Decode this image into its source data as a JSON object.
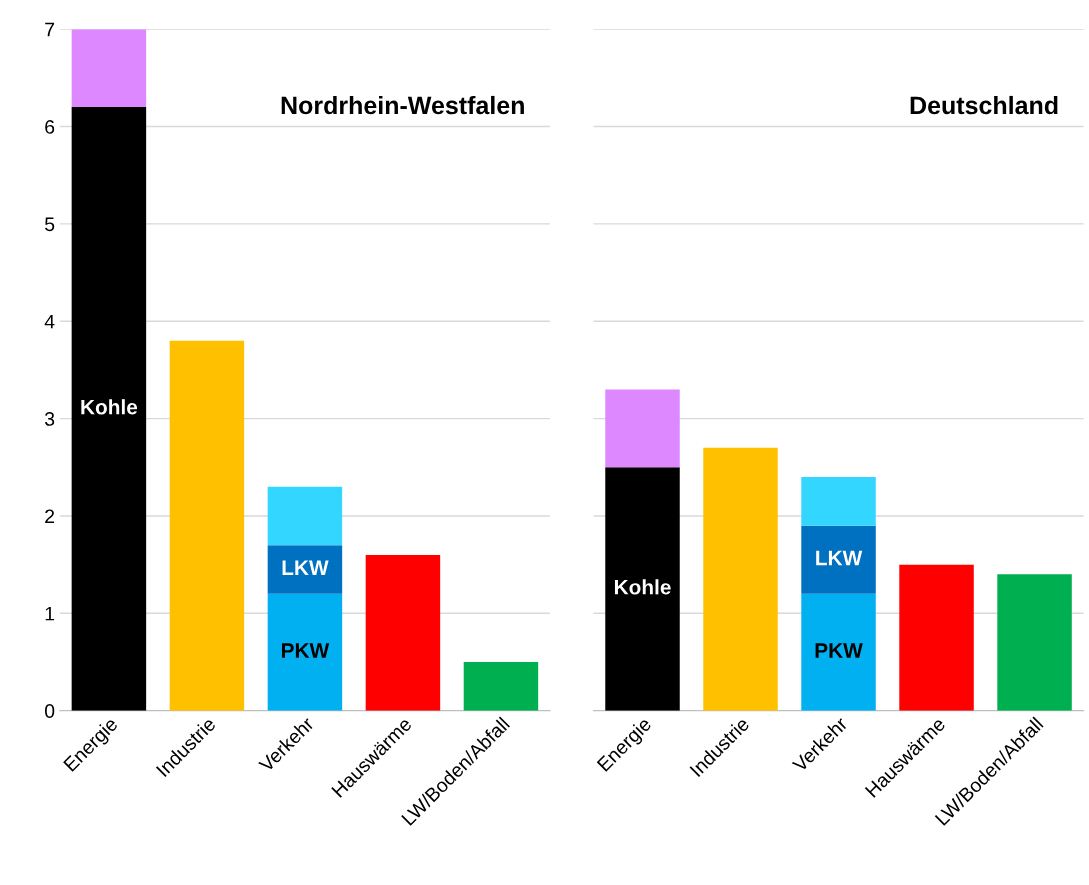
{
  "chart_data": [
    {
      "type": "bar",
      "title": "Nordrhein-Westfalen",
      "stacked": true,
      "grid": "y",
      "ylim": [
        0,
        7
      ],
      "yticks": [
        0,
        1,
        2,
        3,
        4,
        5,
        6,
        7
      ],
      "categories": [
        "Energie",
        "Industrie",
        "Verkehr",
        "Hauswärme",
        "LW/Boden/Abfall"
      ],
      "series": [
        {
          "name": "Kohle",
          "color": "#000000",
          "values": [
            6.2,
            null,
            null,
            null,
            null
          ]
        },
        {
          "color": "#dd88ff",
          "values": [
            0.8,
            null,
            null,
            null,
            null
          ]
        },
        {
          "color": "#ffc000",
          "values": [
            null,
            3.8,
            null,
            null,
            null
          ]
        },
        {
          "name": "PKW",
          "color": "#00b0f0",
          "values": [
            null,
            null,
            1.2,
            null,
            null
          ]
        },
        {
          "name": "LKW",
          "color": "#0070c0",
          "values": [
            null,
            null,
            0.5,
            null,
            null
          ]
        },
        {
          "color": "#33d6ff",
          "values": [
            null,
            null,
            0.6,
            null,
            null
          ]
        },
        {
          "color": "#ff0000",
          "values": [
            null,
            null,
            null,
            1.6,
            null
          ]
        },
        {
          "color": "#00b050",
          "values": [
            null,
            null,
            null,
            null,
            0.5
          ]
        }
      ]
    },
    {
      "type": "bar",
      "title": "Deutschland",
      "stacked": true,
      "grid": "y",
      "ylim": [
        0,
        7
      ],
      "yticks": [
        0,
        1,
        2,
        3,
        4,
        5,
        6,
        7
      ],
      "tick_labels": "x",
      "categories": [
        "Energie",
        "Industrie",
        "Verkehr",
        "Hauswärme",
        "LW/Boden/Abfall"
      ],
      "series": [
        {
          "name": "Kohle",
          "color": "#000000",
          "values": [
            2.5,
            null,
            null,
            null,
            null
          ]
        },
        {
          "color": "#dd88ff",
          "values": [
            0.8,
            null,
            null,
            null,
            null
          ]
        },
        {
          "color": "#ffc000",
          "values": [
            null,
            2.7,
            null,
            null,
            null
          ]
        },
        {
          "name": "PKW",
          "color": "#00b0f0",
          "values": [
            null,
            null,
            1.2,
            null,
            null
          ]
        },
        {
          "name": "LKW",
          "color": "#0070c0",
          "values": [
            null,
            null,
            0.7,
            null,
            null
          ]
        },
        {
          "color": "#33d6ff",
          "values": [
            null,
            null,
            0.5,
            null,
            null
          ]
        },
        {
          "color": "#ff0000",
          "values": [
            null,
            null,
            null,
            1.5,
            null
          ]
        },
        {
          "color": "#00b050",
          "values": [
            null,
            null,
            null,
            null,
            1.4
          ]
        }
      ]
    }
  ]
}
